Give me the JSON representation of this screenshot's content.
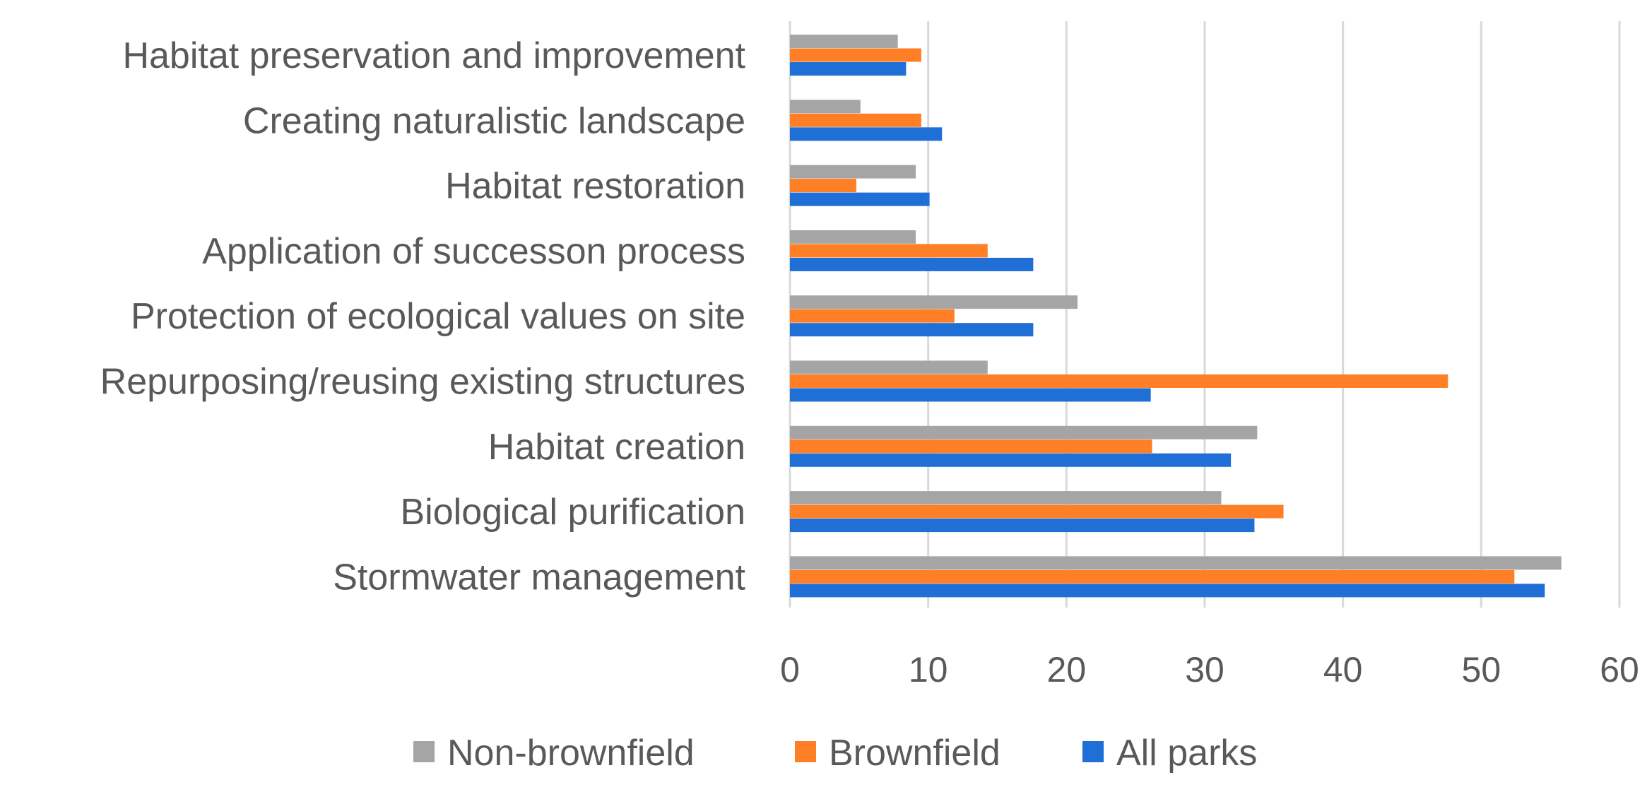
{
  "chart_data": {
    "type": "bar",
    "orientation": "horizontal",
    "title": "",
    "xlabel": "",
    "ylabel": "",
    "xlim": [
      0,
      60
    ],
    "x_ticks": [
      "0",
      "10",
      "20",
      "30",
      "40",
      "50",
      "60"
    ],
    "grid": true,
    "legend_position": "bottom",
    "categories": [
      "Habitat preservation and improvement",
      "Creating naturalistic landscape",
      "Habitat restoration",
      "Application of successon process",
      "Protection of ecological values on site",
      "Repurposing/reusing existing structures",
      "Habitat creation",
      "Biological purification",
      "Stormwater management"
    ],
    "series": [
      {
        "name": "Non-brownfield",
        "color": "#a5a5a5",
        "values": [
          7.8,
          5.1,
          9.1,
          9.1,
          20.8,
          14.3,
          33.8,
          31.2,
          55.8
        ]
      },
      {
        "name": "Brownfield",
        "color": "#ff7f27",
        "values": [
          9.5,
          9.5,
          4.8,
          14.3,
          11.9,
          47.6,
          26.2,
          35.7,
          52.4
        ]
      },
      {
        "name": "All parks",
        "color": "#1f6fd6",
        "values": [
          8.4,
          11.0,
          10.1,
          17.6,
          17.6,
          26.1,
          31.9,
          33.6,
          54.6
        ]
      }
    ]
  }
}
